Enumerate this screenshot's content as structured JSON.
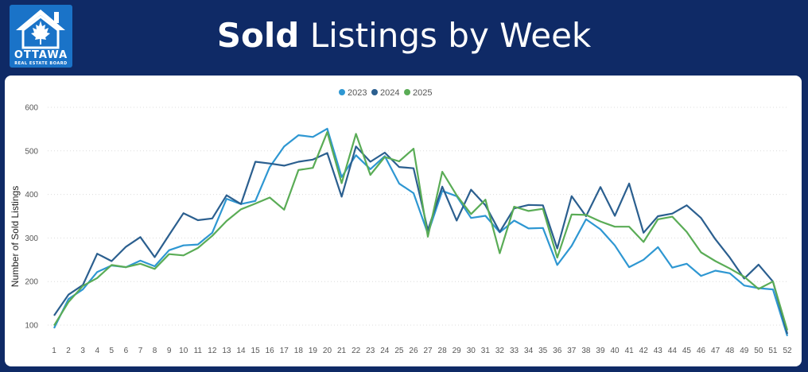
{
  "header": {
    "title_bold": "Sold",
    "title_rest": " Listings by Week",
    "logo_text": "OTTAWA",
    "logo_subtext": "REAL ESTATE BOARD"
  },
  "colors": {
    "background": "#0f2a66",
    "s2023": "#2e97d2",
    "s2024": "#2b5f8f",
    "s2025": "#5aac56"
  },
  "chart_data": {
    "type": "line",
    "title": "",
    "xlabel": "",
    "ylabel": "Number of Sold Listings",
    "ylim": [
      80,
      600
    ],
    "yticks": [
      100,
      200,
      300,
      400,
      500,
      600
    ],
    "grid": true,
    "legend_position": "top",
    "x": [
      1,
      2,
      3,
      4,
      5,
      6,
      7,
      8,
      9,
      10,
      11,
      12,
      13,
      14,
      15,
      16,
      17,
      18,
      19,
      20,
      21,
      22,
      23,
      24,
      25,
      26,
      27,
      28,
      29,
      30,
      31,
      32,
      33,
      34,
      35,
      36,
      37,
      38,
      39,
      40,
      41,
      42,
      43,
      44,
      45,
      46,
      47,
      48,
      49,
      50,
      51,
      52
    ],
    "series": [
      {
        "name": "2023",
        "color": "#2e97d2",
        "values": [
          93,
          160,
          182,
          222,
          237,
          233,
          248,
          235,
          272,
          283,
          285,
          312,
          390,
          378,
          385,
          463,
          510,
          536,
          532,
          551,
          440,
          490,
          458,
          488,
          425,
          403,
          310,
          408,
          396,
          346,
          351,
          313,
          340,
          322,
          323,
          238,
          282,
          343,
          320,
          283,
          233,
          250,
          279,
          232,
          241,
          213,
          225,
          219,
          191,
          185,
          182,
          75
        ]
      },
      {
        "name": "2024",
        "color": "#2b5f8f",
        "values": [
          122,
          170,
          192,
          264,
          247,
          280,
          302,
          256,
          307,
          357,
          341,
          345,
          398,
          378,
          475,
          471,
          466,
          475,
          480,
          495,
          395,
          510,
          475,
          496,
          463,
          460,
          318,
          418,
          340,
          411,
          375,
          314,
          368,
          376,
          375,
          276,
          396,
          350,
          417,
          351,
          425,
          312,
          350,
          356,
          375,
          346,
          297,
          255,
          207,
          239,
          200,
          80
        ]
      },
      {
        "name": "2025",
        "color": "#5aac56",
        "values": [
          99,
          153,
          190,
          208,
          238,
          233,
          241,
          229,
          263,
          260,
          277,
          305,
          339,
          366,
          379,
          393,
          365,
          456,
          461,
          543,
          426,
          539,
          445,
          486,
          476,
          505,
          303,
          452,
          398,
          355,
          388,
          265,
          372,
          362,
          367,
          255,
          354,
          353,
          338,
          326,
          326,
          291,
          343,
          349,
          314,
          267,
          247,
          230,
          211,
          183,
          200,
          88
        ]
      }
    ]
  }
}
